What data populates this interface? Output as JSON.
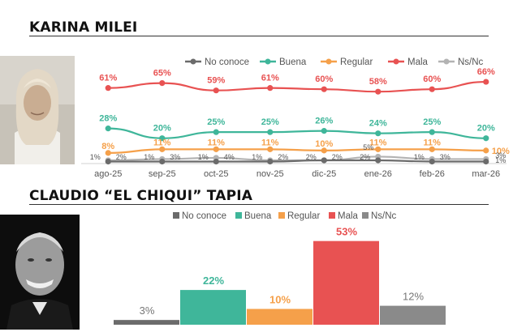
{
  "charts": [
    {
      "person": "KARINA MILEI",
      "photo_alt_icon": "portrait-woman",
      "chart_data": {
        "type": "line",
        "categories": [
          "ago-25",
          "sep-25",
          "oct-25",
          "nov-25",
          "dic-25",
          "ene-26",
          "feb-26",
          "mar-26"
        ],
        "series": [
          {
            "name": "No conoce",
            "color": "#6b6b6b",
            "values": [
              1,
              1,
              1,
              1,
              2,
              2,
              1,
              1
            ],
            "labels": [
              "1%",
              "1%",
              "1%",
              "1%",
              "2%",
              "2%",
              "1%",
              "1%"
            ]
          },
          {
            "name": "Buena",
            "color": "#3fb69a",
            "values": [
              28,
              20,
              25,
              25,
              26,
              24,
              25,
              20
            ],
            "labels": [
              "28%",
              "20%",
              "25%",
              "25%",
              "26%",
              "24%",
              "25%",
              "20%"
            ]
          },
          {
            "name": "Regular",
            "color": "#f5a04a",
            "values": [
              8,
              11,
              11,
              11,
              10,
              11,
              11,
              10
            ],
            "labels": [
              "8%",
              "11%",
              "11%",
              "11%",
              "10%",
              "11%",
              "11%",
              "10%"
            ]
          },
          {
            "name": "Mala",
            "color": "#e85252",
            "values": [
              61,
              65,
              59,
              61,
              60,
              58,
              60,
              66
            ],
            "labels": [
              "61%",
              "65%",
              "59%",
              "61%",
              "60%",
              "58%",
              "60%",
              "66%"
            ]
          },
          {
            "name": "Ns/Nc",
            "color": "#b3b3b3",
            "values": [
              2,
              3,
              4,
              2,
              2,
              5,
              3,
              3
            ],
            "labels": [
              "2%",
              "3%",
              "4%",
              "2%",
              "2%",
              "5%",
              "3%",
              "3%"
            ]
          }
        ],
        "ylim": [
          0,
          72
        ],
        "legend": "top"
      }
    },
    {
      "person": "CLAUDIO “EL CHIQUI” TAPIA",
      "photo_alt_icon": "portrait-man",
      "chart_data": {
        "type": "bar",
        "categories": [
          "No conoce",
          "Buena",
          "Regular",
          "Mala",
          "Ns/Nc"
        ],
        "values": [
          3,
          22,
          10,
          53,
          12
        ],
        "labels": [
          "3%",
          "22%",
          "10%",
          "53%",
          "12%"
        ],
        "colors": [
          "#6b6b6b",
          "#3fb69a",
          "#f5a04a",
          "#e85252",
          "#8a8a8a"
        ],
        "ylim": [
          0,
          60
        ],
        "legend": "top"
      }
    }
  ]
}
